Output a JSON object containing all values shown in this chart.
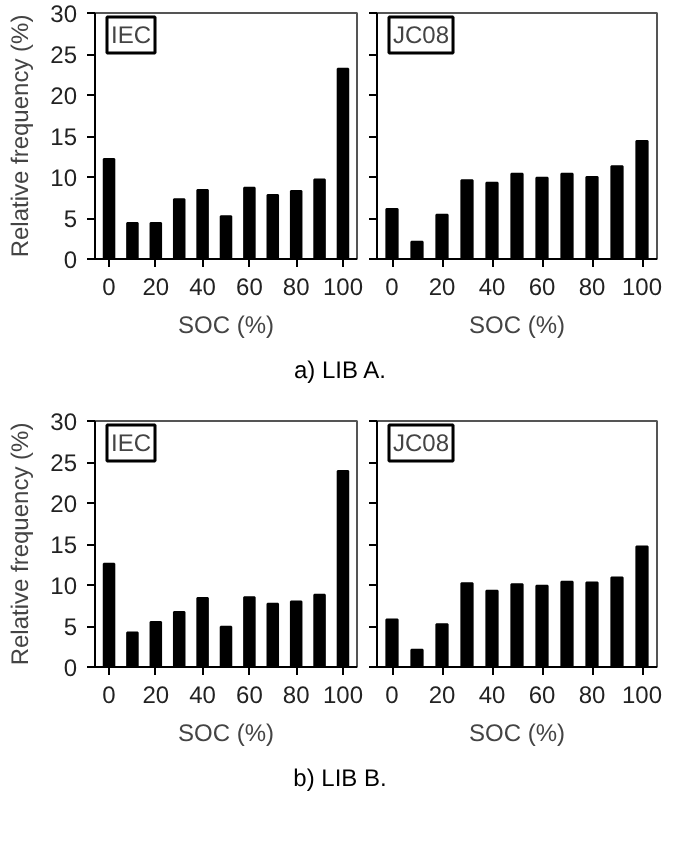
{
  "chart_data": [
    {
      "type": "bar",
      "title": "IEC",
      "xlabel": "SOC (%)",
      "ylabel": "Relative frequency (%)",
      "x": [
        0,
        10,
        20,
        30,
        40,
        50,
        60,
        70,
        80,
        90,
        100
      ],
      "values": [
        12.2,
        4.4,
        4.4,
        7.3,
        8.4,
        5.2,
        8.7,
        7.8,
        8.3,
        9.7,
        23.2
      ],
      "color": "#000000",
      "xlim": [
        -6,
        106
      ],
      "ylim": [
        0,
        30
      ],
      "xticks": [
        0,
        20,
        40,
        60,
        80,
        100
      ],
      "yticks": [
        0,
        5,
        10,
        15,
        20,
        25,
        30
      ],
      "grid": false,
      "annotations": [
        "a) LIB A."
      ]
    },
    {
      "type": "bar",
      "title": "JC08",
      "xlabel": "SOC (%)",
      "x": [
        0,
        10,
        20,
        30,
        40,
        50,
        60,
        70,
        80,
        90,
        100
      ],
      "values": [
        6.1,
        2.1,
        5.4,
        9.6,
        9.3,
        10.4,
        9.9,
        10.4,
        10.0,
        11.3,
        14.4
      ],
      "color": "#000000",
      "xlim": [
        -6,
        106
      ],
      "ylim": [
        0,
        30
      ],
      "xticks": [
        0,
        20,
        40,
        60,
        80,
        100
      ],
      "yticks": [
        0,
        5,
        10,
        15,
        20,
        25,
        30
      ],
      "grid": false,
      "tick_labels": "x"
    },
    {
      "type": "bar",
      "title": "IEC",
      "xlabel": "SOC (%)",
      "ylabel": "Relative frequency (%)",
      "x": [
        0,
        10,
        20,
        30,
        40,
        50,
        60,
        70,
        80,
        90,
        100
      ],
      "values": [
        12.6,
        4.2,
        5.5,
        6.7,
        8.4,
        4.9,
        8.5,
        7.7,
        8.0,
        8.8,
        23.9
      ],
      "color": "#000000",
      "xlim": [
        -6,
        106
      ],
      "ylim": [
        0,
        30
      ],
      "xticks": [
        0,
        20,
        40,
        60,
        80,
        100
      ],
      "yticks": [
        0,
        5,
        10,
        15,
        20,
        25,
        30
      ],
      "grid": false,
      "annotations": [
        "b) LIB B."
      ]
    },
    {
      "type": "bar",
      "title": "JC08",
      "xlabel": "SOC (%)",
      "x": [
        0,
        10,
        20,
        30,
        40,
        50,
        60,
        70,
        80,
        90,
        100
      ],
      "values": [
        5.8,
        2.1,
        5.2,
        10.2,
        9.3,
        10.1,
        9.9,
        10.4,
        10.3,
        10.9,
        14.7
      ],
      "color": "#000000",
      "xlim": [
        -6,
        106
      ],
      "ylim": [
        0,
        30
      ],
      "xticks": [
        0,
        20,
        40,
        60,
        80,
        100
      ],
      "yticks": [
        0,
        5,
        10,
        15,
        20,
        25,
        30
      ],
      "grid": false,
      "tick_labels": "x"
    }
  ]
}
